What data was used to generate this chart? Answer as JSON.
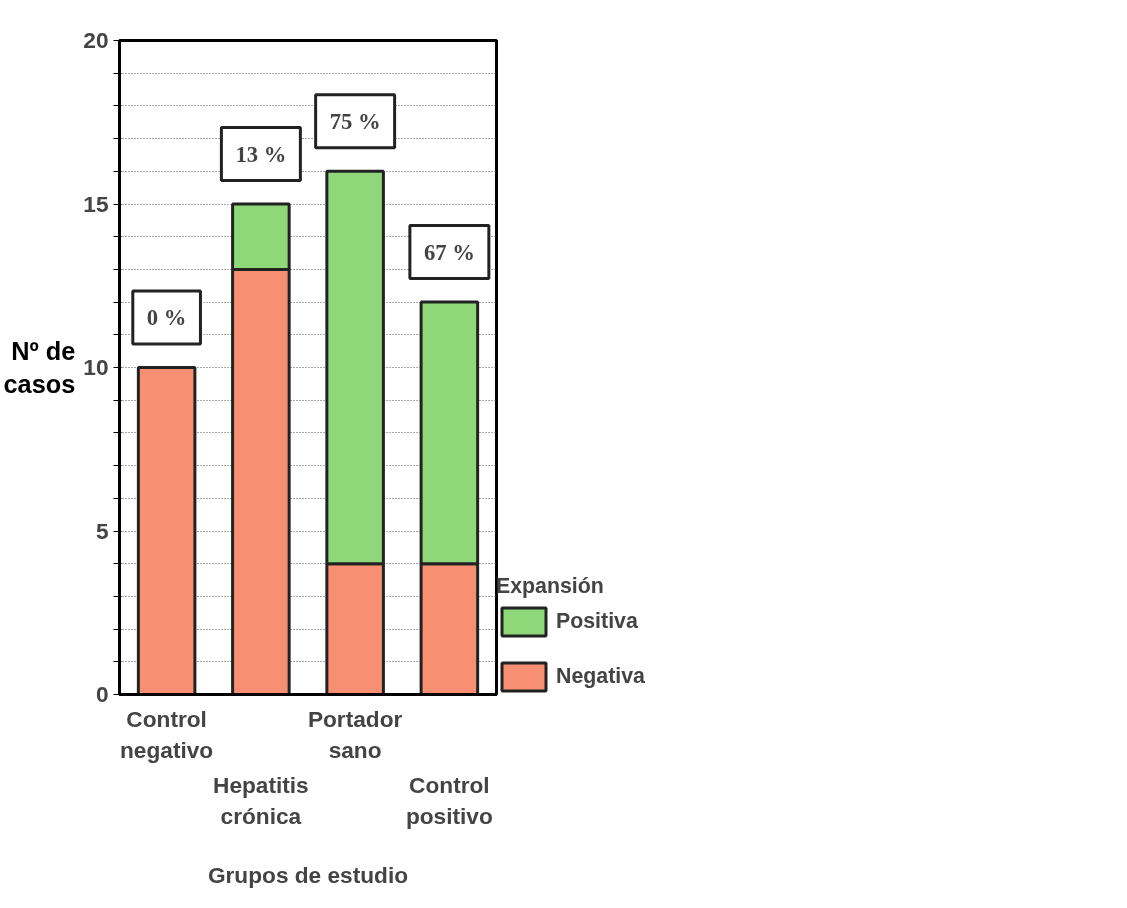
{
  "chart_data": {
    "type": "bar",
    "stacked": true,
    "xlabel": "Grupos de estudio",
    "ylabel": "Nº de casos",
    "legend_title": "Expansión",
    "legend": "bottom right",
    "grid": "y",
    "categories": [
      "Control negativo",
      "Hepatitis crónica",
      "Portador sano",
      "Control positivo"
    ],
    "series": [
      {
        "name": "Negativa",
        "color": "#f79072",
        "values": [
          10,
          13,
          4,
          4
        ]
      },
      {
        "name": "Positiva",
        "color": "#8fd87a",
        "values": [
          null,
          2,
          12,
          8
        ]
      }
    ],
    "ylim": [
      0,
      20
    ],
    "yticks": [
      0,
      {
        "value": 1,
        "label": null
      },
      {
        "value": 2,
        "label": null
      },
      {
        "value": 3,
        "label": null
      },
      {
        "value": 4,
        "label": null
      },
      5,
      {
        "value": 6,
        "label": null
      },
      {
        "value": 7,
        "label": null
      },
      {
        "value": 8,
        "label": null
      },
      {
        "value": 9,
        "label": null
      },
      10,
      {
        "value": 11,
        "label": null
      },
      {
        "value": 12,
        "label": null
      },
      {
        "value": 13,
        "label": null
      },
      {
        "value": 14,
        "label": null
      },
      15,
      {
        "value": 16,
        "label": null
      },
      {
        "value": 17,
        "label": null
      },
      {
        "value": 18,
        "label": null
      },
      {
        "value": 19,
        "label": null
      },
      20
    ],
    "annotations": [
      "0 %",
      "13 %",
      "75 %",
      "67 %"
    ]
  }
}
